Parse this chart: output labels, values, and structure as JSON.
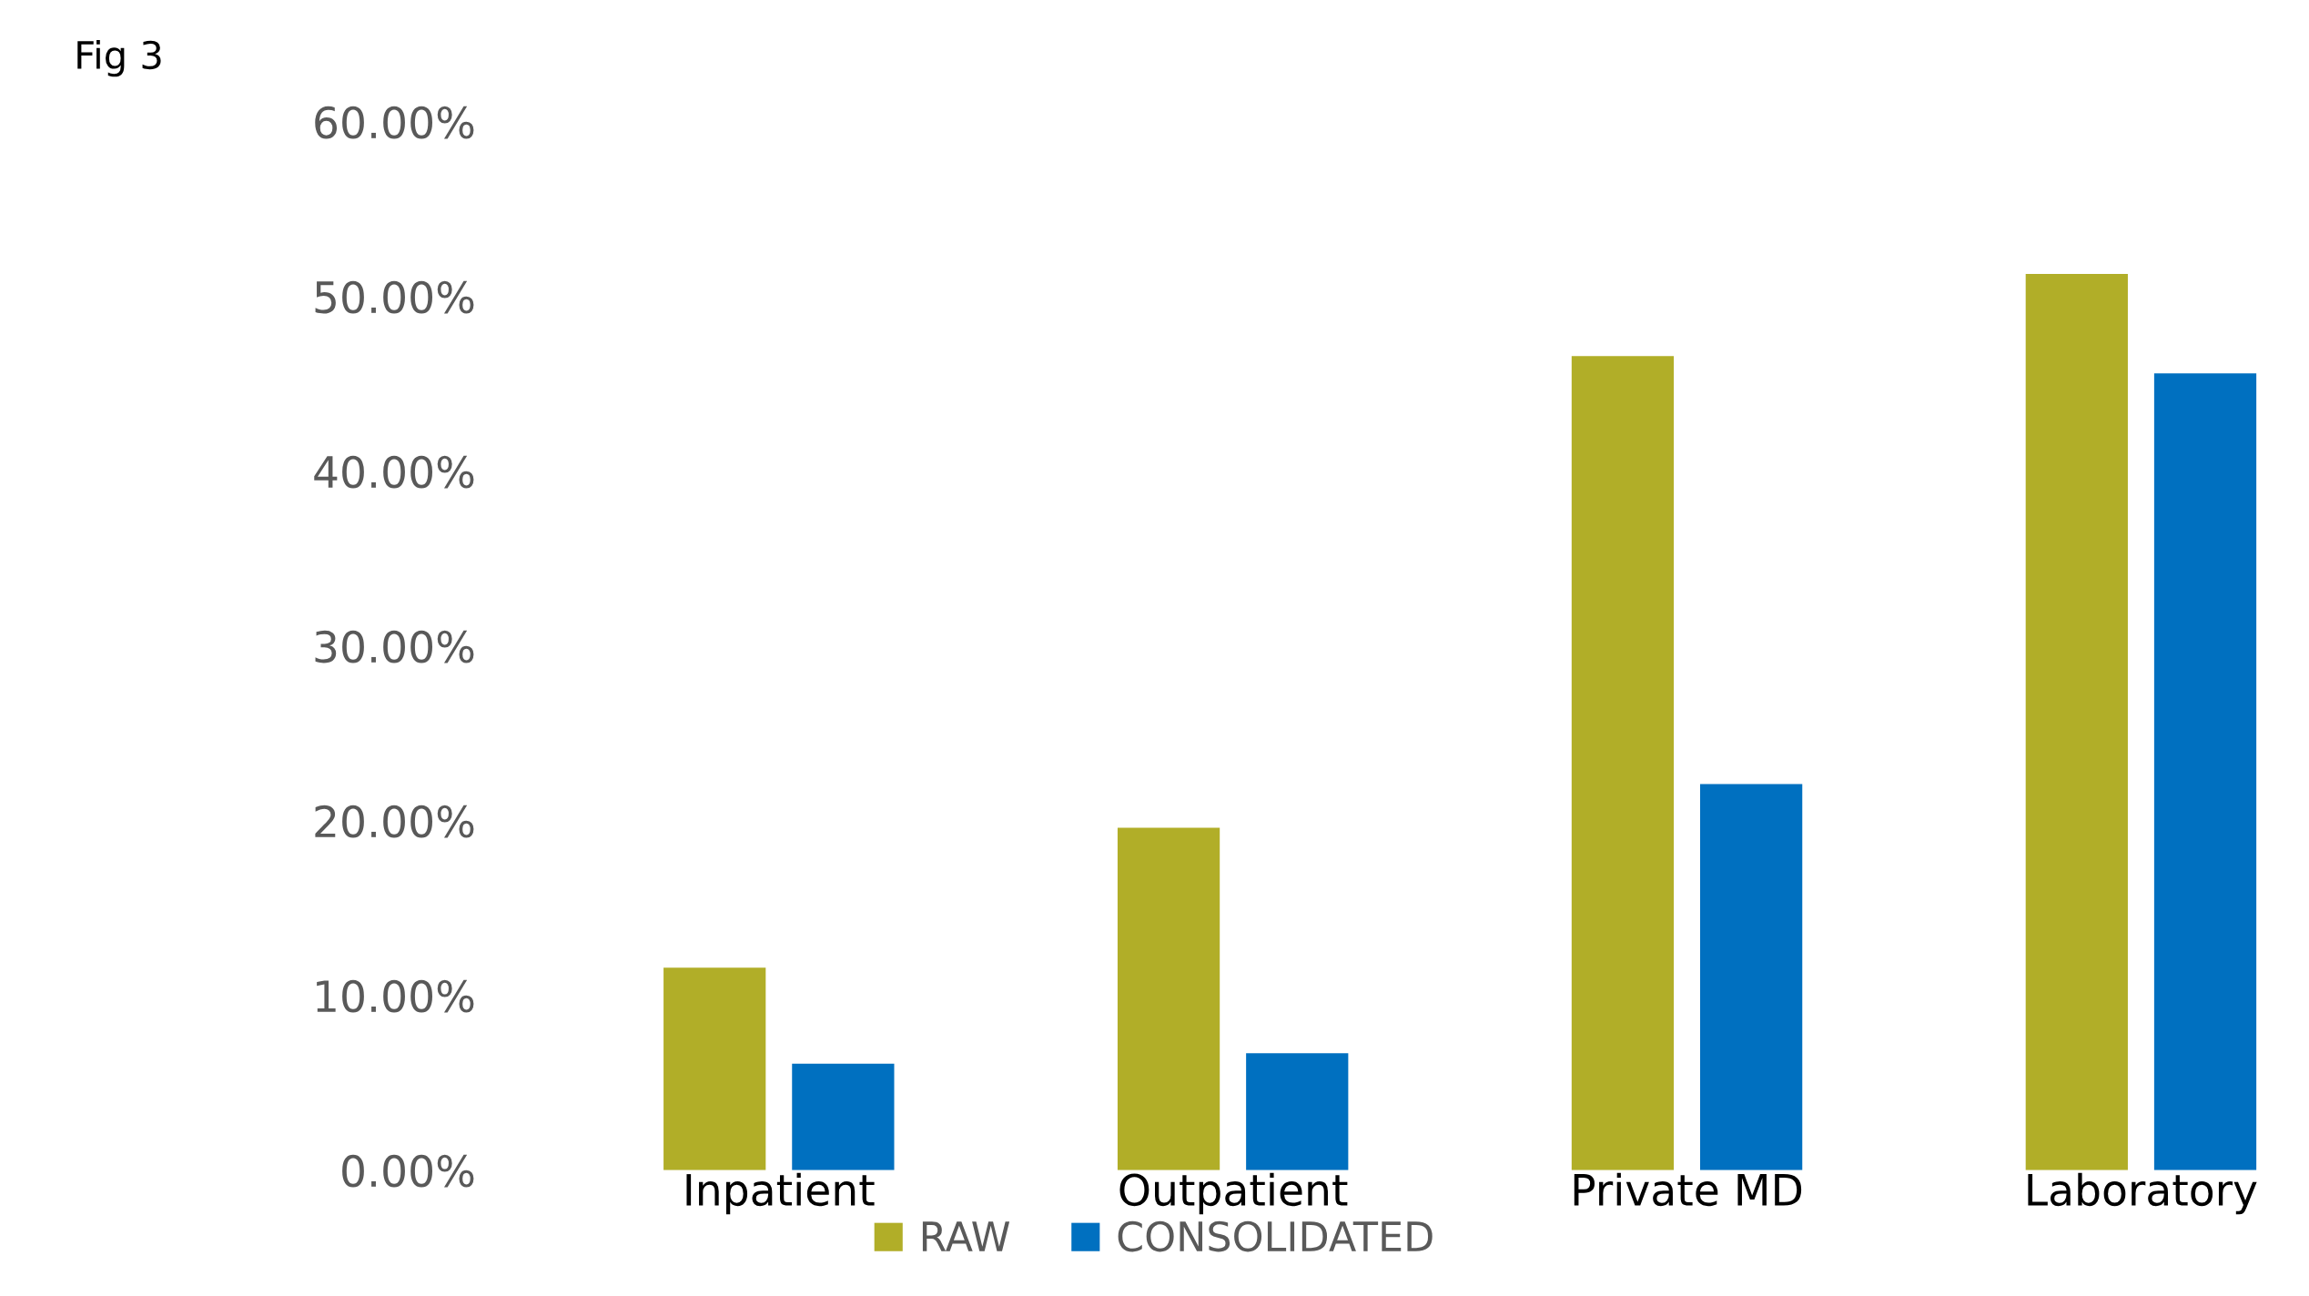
{
  "chart_data": {
    "type": "bar",
    "title": "Fig 3",
    "categories": [
      "Inpatient",
      "Outpatient",
      "Private MD",
      "Laboratory"
    ],
    "series": [
      {
        "name": "RAW",
        "color": "#b1ae28",
        "values": [
          11.6,
          19.6,
          46.6,
          51.3
        ]
      },
      {
        "name": "CONSOLIDATED",
        "color": "#0070c0",
        "values": [
          6.1,
          6.7,
          22.1,
          45.6
        ]
      }
    ],
    "ylim": [
      0,
      60
    ],
    "yticks": [
      {
        "value": 0,
        "label": "0.00%"
      },
      {
        "value": 10,
        "label": "10.00%"
      },
      {
        "value": 20,
        "label": "20.00%"
      },
      {
        "value": 30,
        "label": "30.00%"
      },
      {
        "value": 40,
        "label": "40.00%"
      },
      {
        "value": 50,
        "label": "50.00%"
      },
      {
        "value": 60,
        "label": "60.00%"
      }
    ],
    "grid": false,
    "legend": "bottom"
  }
}
